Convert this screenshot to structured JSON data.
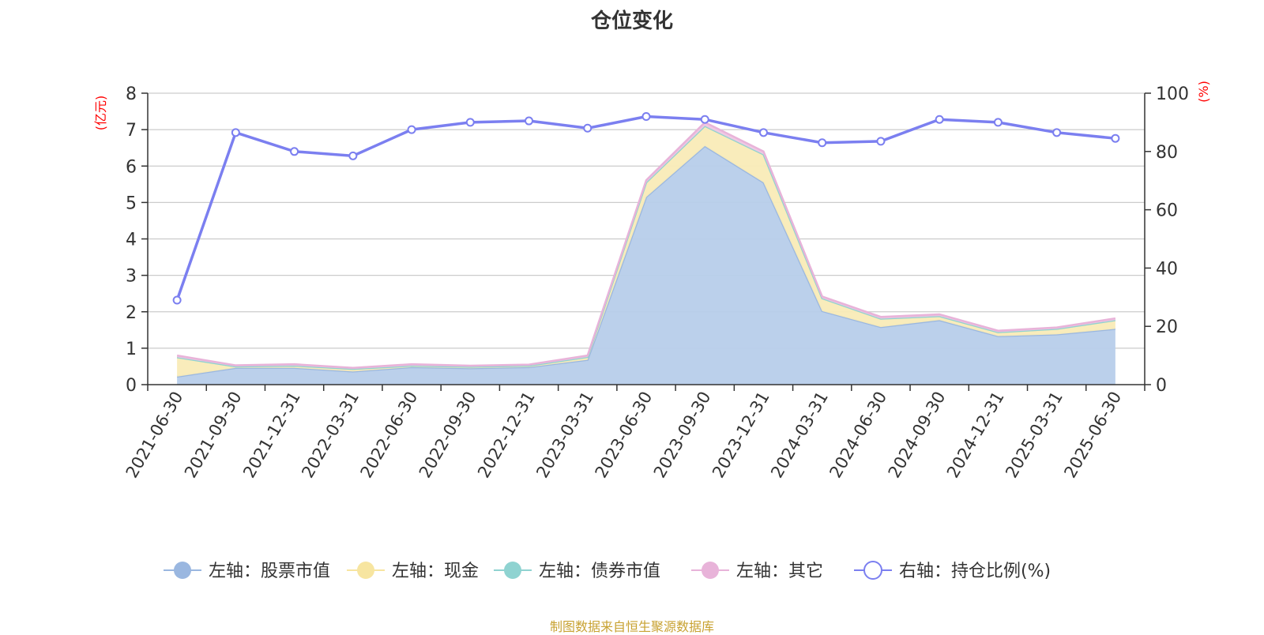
{
  "chart_data": {
    "type": "area",
    "title": "仓位变化",
    "categories": [
      "2021-06-30",
      "2021-09-30",
      "2021-12-31",
      "2022-03-31",
      "2022-06-30",
      "2022-09-30",
      "2022-12-31",
      "2023-03-31",
      "2023-06-30",
      "2023-09-30",
      "2023-12-31",
      "2024-03-31",
      "2024-06-30",
      "2024-09-30",
      "2024-12-31",
      "2025-03-31",
      "2025-06-30"
    ],
    "left_axis": {
      "unit_label": "(亿元)",
      "ylim": [
        0,
        8
      ],
      "ticks": [
        "0",
        "1",
        "2",
        "3",
        "4",
        "5",
        "6",
        "7",
        "8"
      ]
    },
    "right_axis": {
      "unit_label": "(%)",
      "ylim": [
        0,
        100
      ],
      "ticks": [
        "0",
        "20",
        "40",
        "60",
        "80",
        "100"
      ]
    },
    "stacked_series": [
      {
        "name": "左轴：股票市值",
        "color": "#9ab7e0",
        "fill": "#b7cdea",
        "values": [
          0.22,
          0.46,
          0.46,
          0.36,
          0.48,
          0.45,
          0.48,
          0.68,
          5.15,
          6.55,
          5.55,
          2.02,
          1.58,
          1.77,
          1.33,
          1.38,
          1.53
        ]
      },
      {
        "name": "左轴：现金",
        "color": "#f7e5a0",
        "fill": "#f9ebb7",
        "values": [
          0.53,
          0.04,
          0.06,
          0.07,
          0.04,
          0.04,
          0.04,
          0.08,
          0.4,
          0.55,
          0.77,
          0.35,
          0.23,
          0.11,
          0.11,
          0.15,
          0.24
        ]
      },
      {
        "name": "左轴：债券市值",
        "color": "#8fd3d1",
        "fill": "#a8dedd",
        "values": [
          0,
          0,
          0,
          0,
          0,
          0,
          0,
          0,
          0,
          0,
          0,
          0,
          0,
          0,
          0,
          0,
          0
        ]
      },
      {
        "name": "左轴：其它",
        "color": "#e8b3d9",
        "fill": "#f0c7e3",
        "values": [
          0.05,
          0.03,
          0.04,
          0.03,
          0.04,
          0.03,
          0.03,
          0.04,
          0.06,
          0.1,
          0.08,
          0.05,
          0.05,
          0.05,
          0.04,
          0.04,
          0.05
        ]
      }
    ],
    "line_series": {
      "name": "右轴：持仓比例(%)",
      "color": "#7b7ff0",
      "values": [
        29,
        86.5,
        80,
        78.5,
        87.5,
        90,
        90.5,
        88,
        92,
        91,
        86.5,
        83,
        83.5,
        91,
        90,
        86.5,
        84.5
      ]
    },
    "grid": true,
    "legend_position": "bottom"
  },
  "source_note": "制图数据来自恒生聚源数据库"
}
